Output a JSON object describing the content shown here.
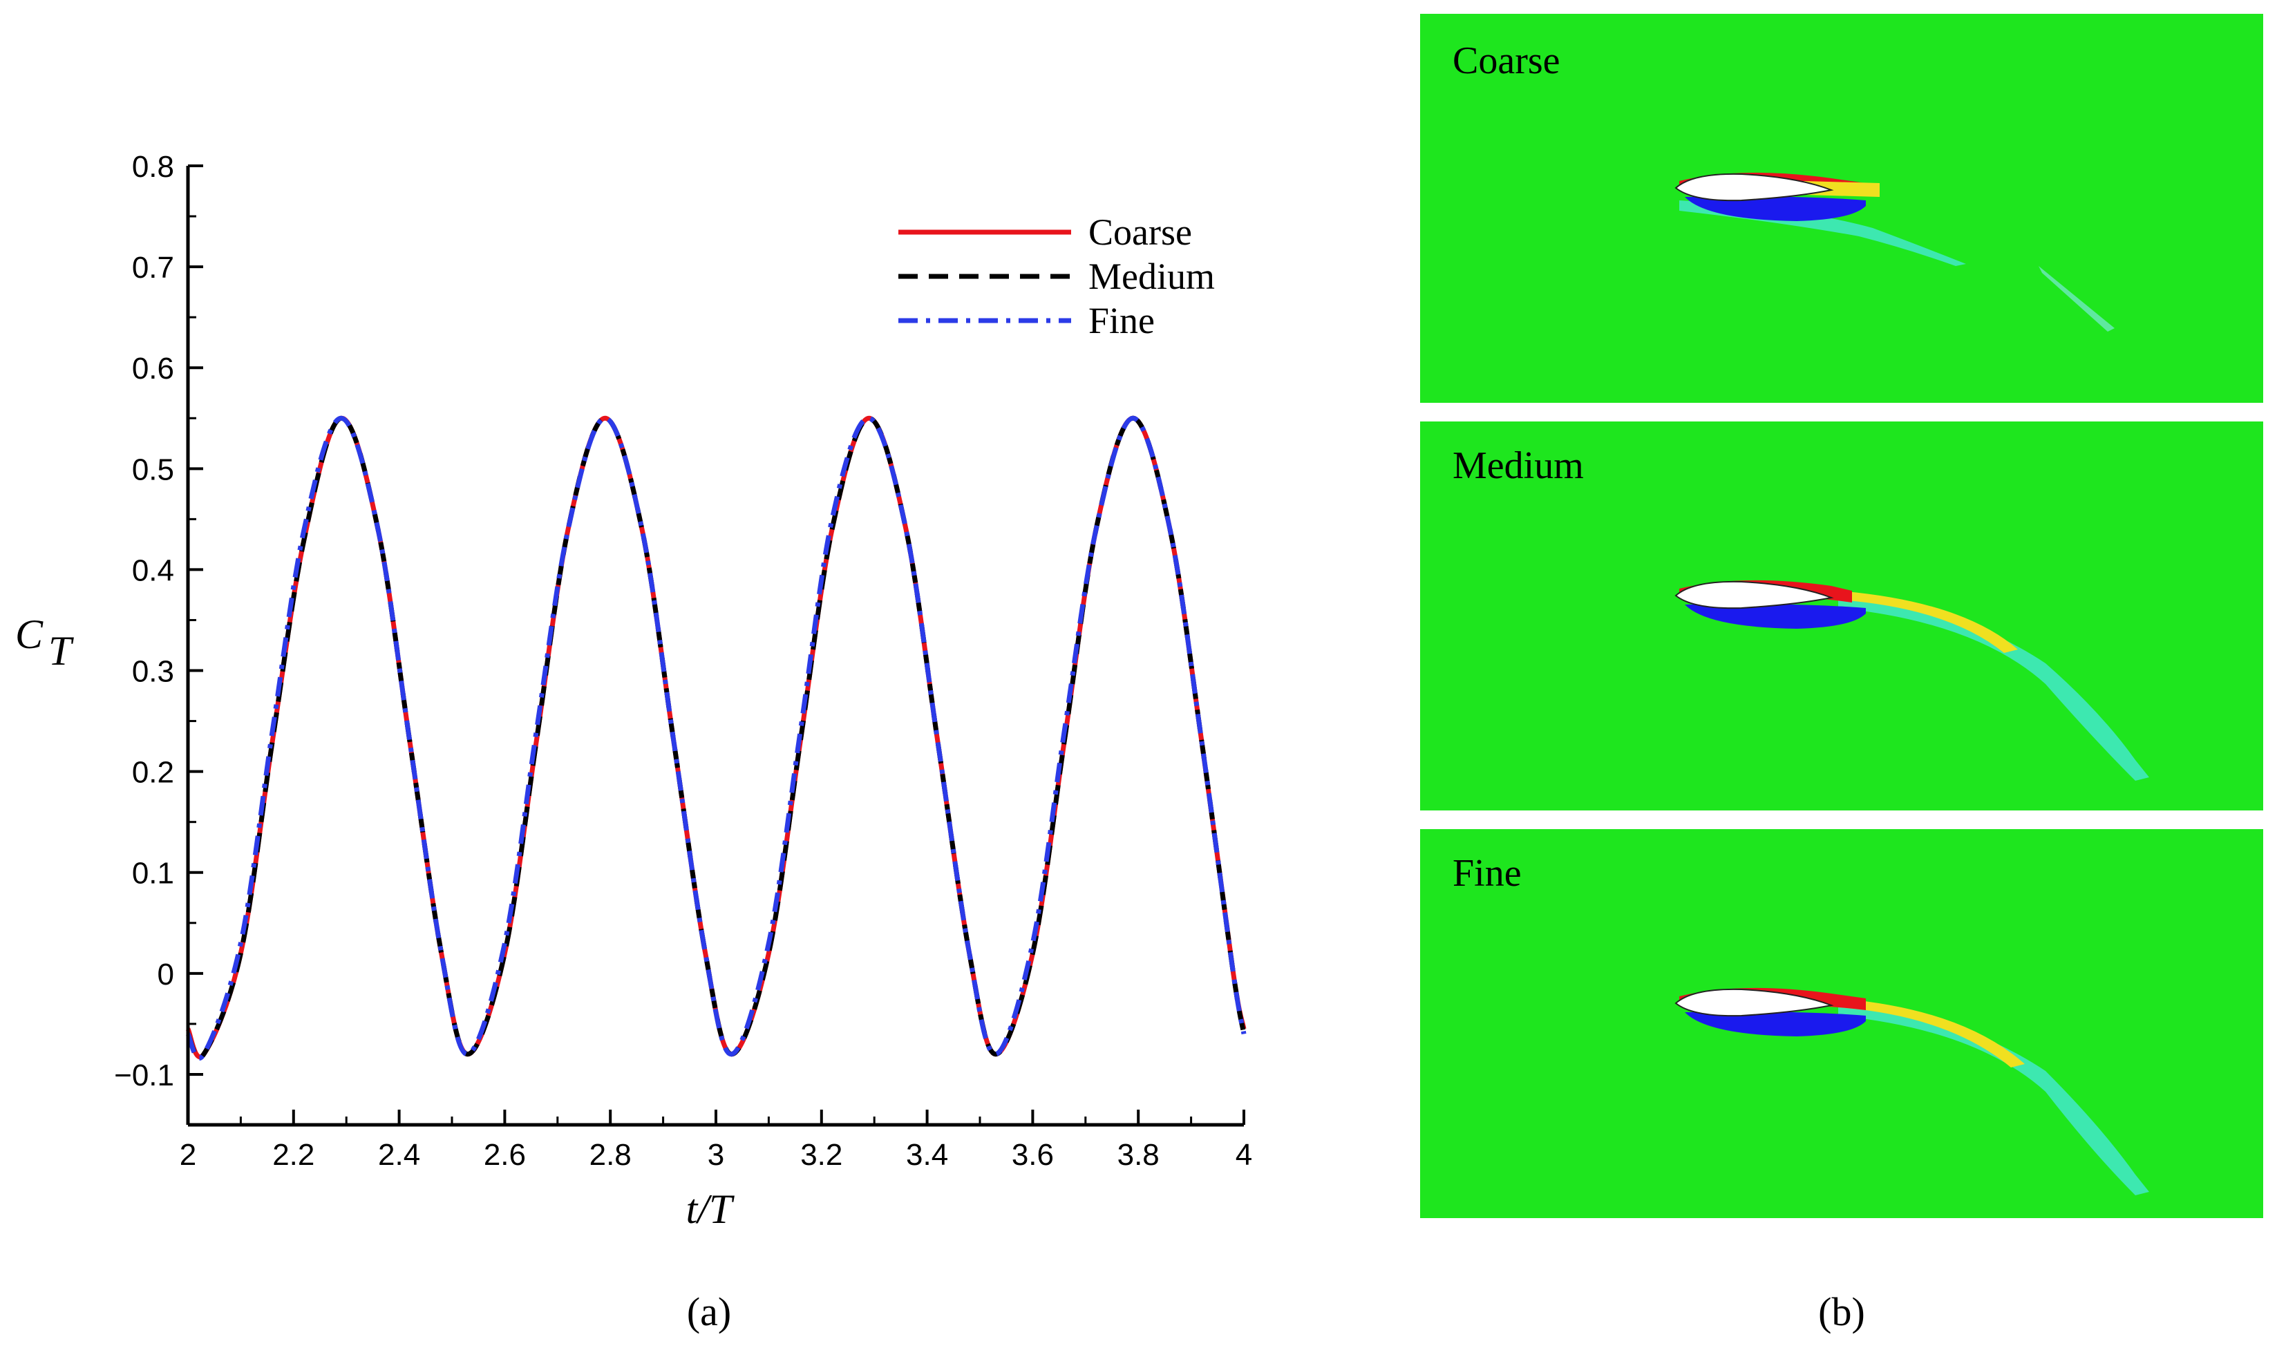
{
  "chart_data": [
    {
      "type": "line",
      "caption": "(a)",
      "xlabel": "t/T",
      "ylabel": "C_T",
      "xlim": [
        2,
        4
      ],
      "ylim": [
        -0.15,
        0.8
      ],
      "xticks": [
        2,
        2.2,
        2.4,
        2.6,
        2.8,
        3,
        3.2,
        3.4,
        3.6,
        3.8,
        4
      ],
      "yticks": [
        -0.1,
        0,
        0.1,
        0.2,
        0.3,
        0.4,
        0.5,
        0.6,
        0.7,
        0.8
      ],
      "xtick_labels": [
        "2",
        "2.2",
        "2.4",
        "2.6",
        "2.8",
        "3",
        "3.2",
        "3.4",
        "3.6",
        "3.8",
        "4"
      ],
      "ytick_labels": [
        "−0.1",
        "0",
        "0.1",
        "0.2",
        "0.3",
        "0.4",
        "0.5",
        "0.6",
        "0.7",
        "0.8"
      ],
      "legend_position": "top-right",
      "grid": false,
      "series": [
        {
          "name": "Coarse",
          "color": "#e8141c",
          "dash": "solid",
          "x": [
            2.0,
            2.03,
            2.1,
            2.16,
            2.22,
            2.29,
            2.36,
            2.42,
            2.48,
            2.53,
            2.6,
            2.66,
            2.72,
            2.79,
            2.86,
            2.92,
            2.98,
            3.03,
            3.1,
            3.16,
            3.22,
            3.29,
            3.36,
            3.42,
            3.48,
            3.53,
            3.6,
            3.66,
            3.72,
            3.79,
            3.86,
            3.92,
            3.98,
            4.0
          ],
          "y": [
            -0.055,
            -0.08,
            0.02,
            0.23,
            0.43,
            0.55,
            0.44,
            0.23,
            0.02,
            -0.08,
            0.02,
            0.23,
            0.44,
            0.55,
            0.44,
            0.23,
            0.02,
            -0.08,
            0.02,
            0.23,
            0.44,
            0.55,
            0.44,
            0.23,
            0.02,
            -0.08,
            0.02,
            0.23,
            0.44,
            0.55,
            0.44,
            0.23,
            0.0,
            -0.055
          ]
        },
        {
          "name": "Medium",
          "color": "#000000",
          "dash": "dashed",
          "x": [
            2.0,
            2.03,
            2.1,
            2.16,
            2.22,
            2.29,
            2.36,
            2.42,
            2.48,
            2.53,
            2.6,
            2.66,
            2.72,
            2.79,
            2.86,
            2.92,
            2.98,
            3.03,
            3.1,
            3.16,
            3.22,
            3.29,
            3.36,
            3.42,
            3.48,
            3.53,
            3.6,
            3.66,
            3.72,
            3.79,
            3.86,
            3.92,
            3.98,
            4.0
          ],
          "y": [
            -0.06,
            -0.08,
            0.02,
            0.23,
            0.43,
            0.55,
            0.44,
            0.23,
            0.02,
            -0.08,
            0.02,
            0.23,
            0.44,
            0.55,
            0.44,
            0.23,
            0.02,
            -0.08,
            0.02,
            0.23,
            0.44,
            0.55,
            0.44,
            0.23,
            0.02,
            -0.08,
            0.02,
            0.23,
            0.44,
            0.55,
            0.44,
            0.23,
            0.0,
            -0.06
          ]
        },
        {
          "name": "Fine",
          "color": "#2b3be8",
          "dash": "dashdot",
          "x": [
            2.0,
            2.03,
            2.1,
            2.16,
            2.22,
            2.29,
            2.36,
            2.42,
            2.48,
            2.53,
            2.6,
            2.66,
            2.72,
            2.79,
            2.86,
            2.92,
            2.98,
            3.03,
            3.1,
            3.16,
            3.22,
            3.29,
            3.36,
            3.42,
            3.48,
            3.53,
            3.6,
            3.66,
            3.72,
            3.79,
            3.86,
            3.92,
            3.98,
            4.0
          ],
          "y": [
            -0.06,
            -0.08,
            0.03,
            0.24,
            0.44,
            0.55,
            0.44,
            0.23,
            0.02,
            -0.08,
            0.03,
            0.24,
            0.44,
            0.55,
            0.44,
            0.23,
            0.02,
            -0.08,
            0.03,
            0.24,
            0.45,
            0.55,
            0.44,
            0.23,
            0.02,
            -0.08,
            0.03,
            0.24,
            0.44,
            0.55,
            0.44,
            0.23,
            0.0,
            -0.06
          ]
        }
      ]
    },
    {
      "type": "contour-panels",
      "caption": "(b)",
      "panels": [
        "Coarse",
        "Medium",
        "Fine"
      ],
      "background_color": "#1ee61e"
    }
  ]
}
